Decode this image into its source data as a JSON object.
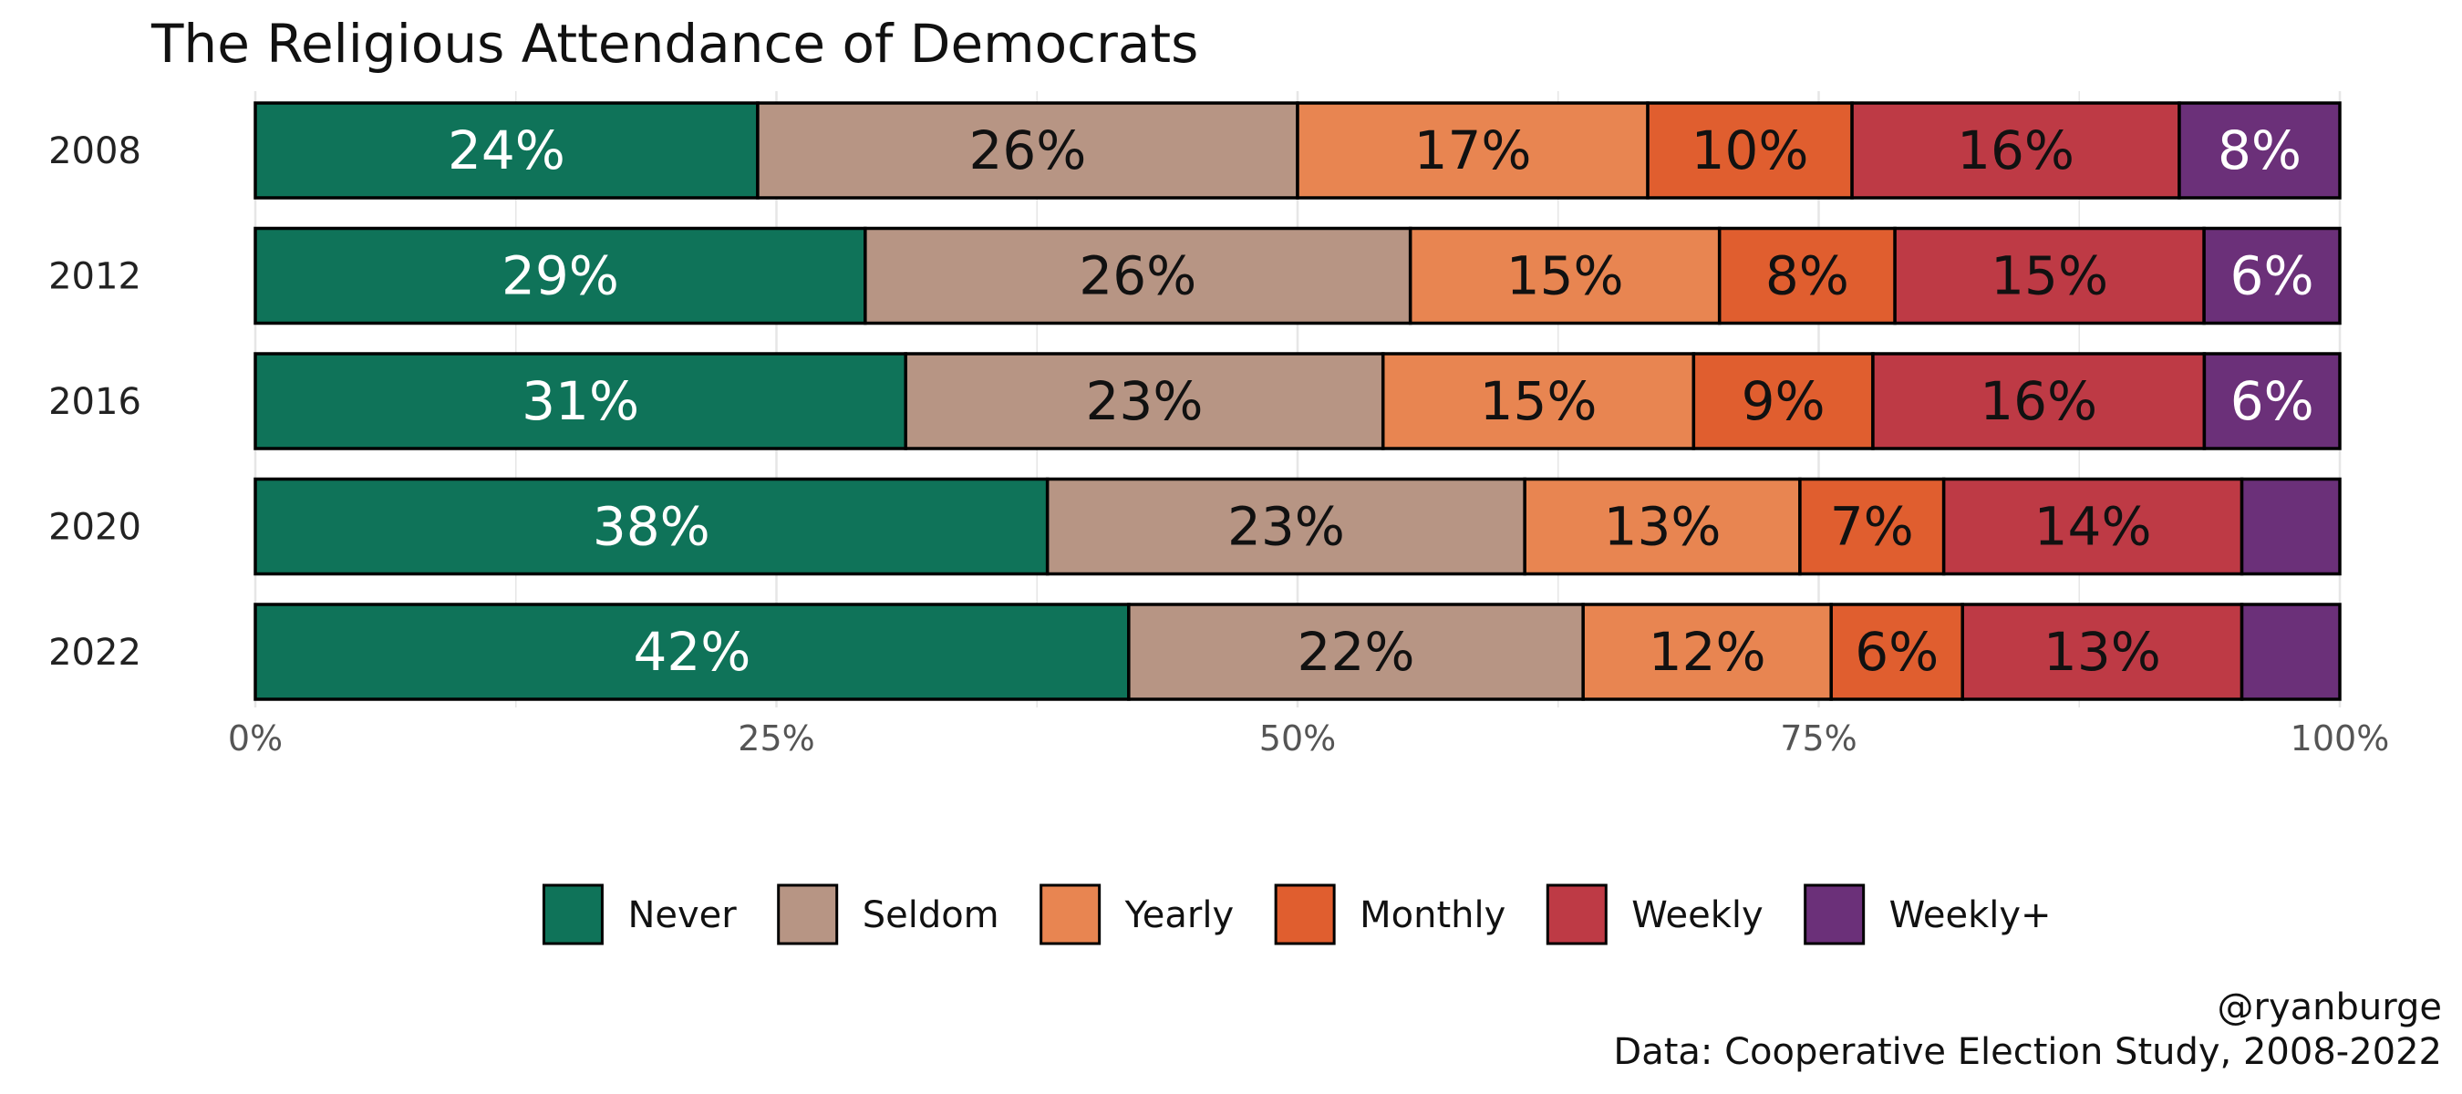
{
  "chart_data": {
    "type": "bar",
    "orientation": "horizontal",
    "stacked": "percent",
    "title": "The Religious Attendance of Democrats",
    "categories": [
      "2008",
      "2012",
      "2016",
      "2020",
      "2022"
    ],
    "series": [
      {
        "name": "Never",
        "color": "#0f7359",
        "label_color": "#ffffff",
        "values": [
          24.1,
          29.2,
          31.2,
          38.0,
          41.9
        ],
        "labels": [
          "24%",
          "29%",
          "31%",
          "38%",
          "42%"
        ]
      },
      {
        "name": "Seldom",
        "color": "#b79584",
        "label_color": "#111111",
        "values": [
          25.9,
          26.1,
          22.9,
          22.9,
          21.8
        ],
        "labels": [
          "26%",
          "26%",
          "23%",
          "23%",
          "22%"
        ]
      },
      {
        "name": "Yearly",
        "color": "#e88551",
        "label_color": "#111111",
        "values": [
          16.8,
          14.8,
          14.9,
          13.2,
          11.9
        ],
        "labels": [
          "17%",
          "15%",
          "15%",
          "13%",
          "12%"
        ]
      },
      {
        "name": "Monthly",
        "color": "#e05e2f",
        "label_color": "#111111",
        "values": [
          9.8,
          8.4,
          8.6,
          6.9,
          6.3
        ],
        "labels": [
          "10%",
          "8%",
          "9%",
          "7%",
          "6%"
        ]
      },
      {
        "name": "Weekly",
        "color": "#be3a45",
        "label_color": "#111111",
        "values": [
          15.7,
          14.8,
          15.9,
          14.3,
          13.4
        ],
        "labels": [
          "16%",
          "15%",
          "16%",
          "14%",
          "13%"
        ]
      },
      {
        "name": "Weekly+",
        "color": "#6b3079",
        "label_color": "#ffffff",
        "values": [
          7.7,
          6.5,
          6.5,
          4.7,
          4.7
        ],
        "labels": [
          "8%",
          "6%",
          "6%",
          "",
          ""
        ]
      }
    ],
    "xlim": [
      0,
      1
    ],
    "x_ticks": [
      0,
      0.25,
      0.5,
      0.75,
      1
    ],
    "x_tick_labels": [
      "0%",
      "25%",
      "50%",
      "75%",
      "100%"
    ],
    "grid": true,
    "legend_position": "bottom",
    "caption": [
      "@ryanburge",
      "Data: Cooperative Election Study, 2008-2022"
    ]
  }
}
